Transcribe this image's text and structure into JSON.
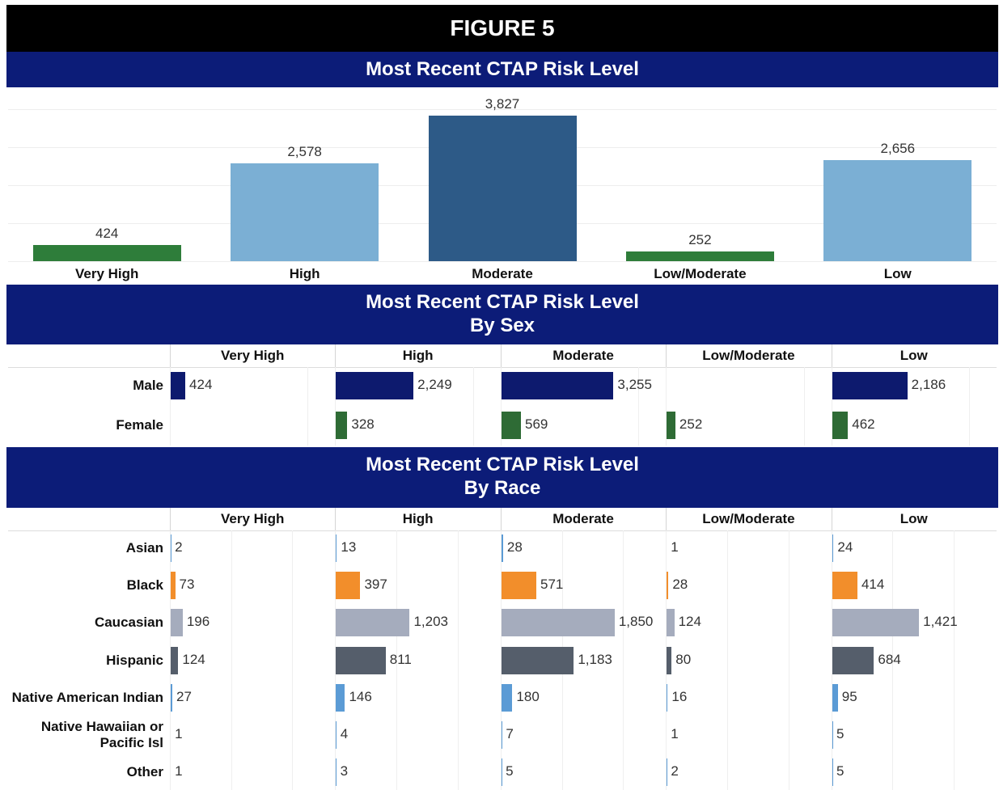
{
  "figure_title": "FIGURE 5",
  "chart_data": [
    {
      "type": "bar",
      "title": "Most Recent CTAP Risk Level",
      "categories": [
        "Very High",
        "High",
        "Moderate",
        "Low/Moderate",
        "Low"
      ],
      "values": [
        424,
        2578,
        3827,
        252,
        2656
      ],
      "value_labels": [
        "424",
        "2,578",
        "3,827",
        "252",
        "2,656"
      ],
      "colors": [
        "#2e7d3a",
        "#7bafd4",
        "#2d5a87",
        "#2e7d3a",
        "#7bafd4"
      ],
      "ylim": [
        0,
        4000
      ],
      "yticks": [
        0,
        1000,
        2000,
        3000,
        4000
      ],
      "grid": true
    },
    {
      "type": "bar-panel",
      "title": "Most Recent CTAP Risk Level",
      "subtitle": "By Sex",
      "categories": [
        "Very High",
        "High",
        "Moderate",
        "Low/Moderate",
        "Low"
      ],
      "series": [
        {
          "name": "Male",
          "color": "#0d1a6e",
          "values": [
            424,
            2249,
            3255,
            null,
            2186
          ],
          "value_labels": [
            "424",
            "2,249",
            "3,255",
            null,
            "2,186"
          ]
        },
        {
          "name": "Female",
          "color": "#2e6b35",
          "values": [
            null,
            328,
            569,
            252,
            462
          ],
          "value_labels": [
            null,
            "328",
            "569",
            "252",
            "462"
          ]
        }
      ],
      "xlim": [
        0,
        4800
      ],
      "xticks": [
        0,
        4000
      ],
      "grid": true
    },
    {
      "type": "bar-panel",
      "title": "Most Recent CTAP Risk Level",
      "subtitle": "By Race",
      "categories": [
        "Very High",
        "High",
        "Moderate",
        "Low/Moderate",
        "Low"
      ],
      "series": [
        {
          "name": "Asian",
          "color": "#5b9bd5",
          "values": [
            2,
            13,
            28,
            1,
            24
          ],
          "value_labels": [
            "2",
            "13",
            "28",
            "1",
            "24"
          ]
        },
        {
          "name": "Black",
          "color": "#f28e2b",
          "values": [
            73,
            397,
            571,
            28,
            414
          ],
          "value_labels": [
            "73",
            "397",
            "571",
            "28",
            "414"
          ]
        },
        {
          "name": "Caucasian",
          "color": "#a5acbd",
          "values": [
            196,
            1203,
            1850,
            124,
            1421
          ],
          "value_labels": [
            "196",
            "1,203",
            "1,850",
            "124",
            "1,421"
          ]
        },
        {
          "name": "Hispanic",
          "color": "#555e6b",
          "values": [
            124,
            811,
            1183,
            80,
            684
          ],
          "value_labels": [
            "124",
            "811",
            "1,183",
            "80",
            "684"
          ]
        },
        {
          "name": "Native American Indian",
          "color": "#5b9bd5",
          "values": [
            27,
            146,
            180,
            16,
            95
          ],
          "value_labels": [
            "27",
            "146",
            "180",
            "16",
            "95"
          ]
        },
        {
          "name": "Native Hawaiian or Pacific Isl",
          "color": "#5b9bd5",
          "values": [
            1,
            4,
            7,
            1,
            5
          ],
          "value_labels": [
            "1",
            "4",
            "7",
            "1",
            "5"
          ]
        },
        {
          "name": "Other",
          "color": "#5b9bd5",
          "values": [
            1,
            3,
            5,
            2,
            5
          ],
          "value_labels": [
            "1",
            "3",
            "5",
            "2",
            "5"
          ]
        }
      ],
      "xlim": [
        0,
        2700
      ],
      "xticks": [
        0,
        1000,
        2000
      ],
      "grid": true
    }
  ]
}
